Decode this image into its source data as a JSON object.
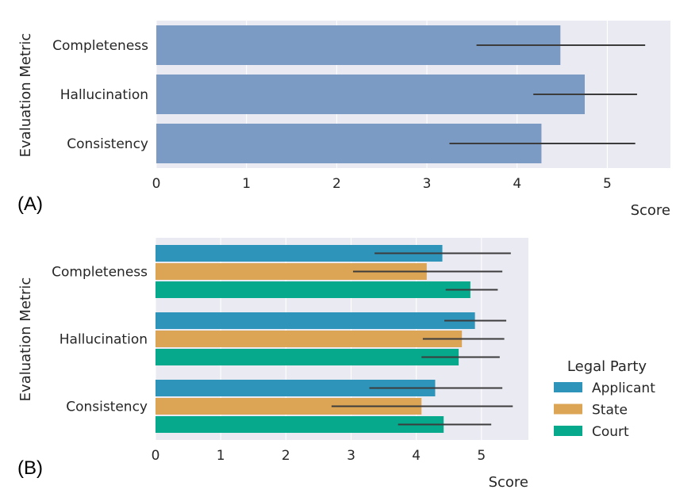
{
  "chart_data": [
    {
      "panel_label": "(A)",
      "type": "bar",
      "orientation": "horizontal",
      "categories": [
        "Completeness",
        "Hallucination",
        "Consistency"
      ],
      "series": [
        {
          "values": [
            4.48,
            4.75,
            4.27
          ],
          "error_low": [
            3.55,
            4.18,
            3.25
          ],
          "error_high": [
            5.42,
            5.33,
            5.31
          ],
          "color": "#7b9ac4"
        }
      ],
      "xlabel": "Score",
      "ylabel": "Evaluation Metric",
      "xlim": [
        0,
        5.7
      ],
      "xticks": [
        "0",
        "1",
        "2",
        "3",
        "4",
        "5"
      ],
      "grid": true
    },
    {
      "panel_label": "(B)",
      "type": "bar",
      "orientation": "horizontal",
      "categories": [
        "Completeness",
        "Hallucination",
        "Consistency"
      ],
      "series": [
        {
          "name": "Applicant",
          "color": "#2e94b9",
          "values": [
            4.4,
            4.9,
            4.29
          ],
          "error_low": [
            3.36,
            4.43,
            3.28
          ],
          "error_high": [
            5.45,
            5.38,
            5.32
          ]
        },
        {
          "name": "State",
          "color": "#dca455",
          "values": [
            4.16,
            4.7,
            4.08
          ],
          "error_low": [
            3.03,
            4.1,
            2.7
          ],
          "error_high": [
            5.32,
            5.35,
            5.48
          ]
        },
        {
          "name": "Court",
          "color": "#07a98d",
          "values": [
            4.83,
            4.65,
            4.42
          ],
          "error_low": [
            4.45,
            4.08,
            3.72
          ],
          "error_high": [
            5.25,
            5.28,
            5.15
          ]
        }
      ],
      "xlabel": "Score",
      "ylabel": "Evaluation Metric",
      "xlim": [
        0,
        5.72
      ],
      "xticks": [
        "0",
        "1",
        "2",
        "3",
        "4",
        "5"
      ],
      "legend_title": "Legal Party",
      "legend_position": "right",
      "grid": true
    }
  ]
}
